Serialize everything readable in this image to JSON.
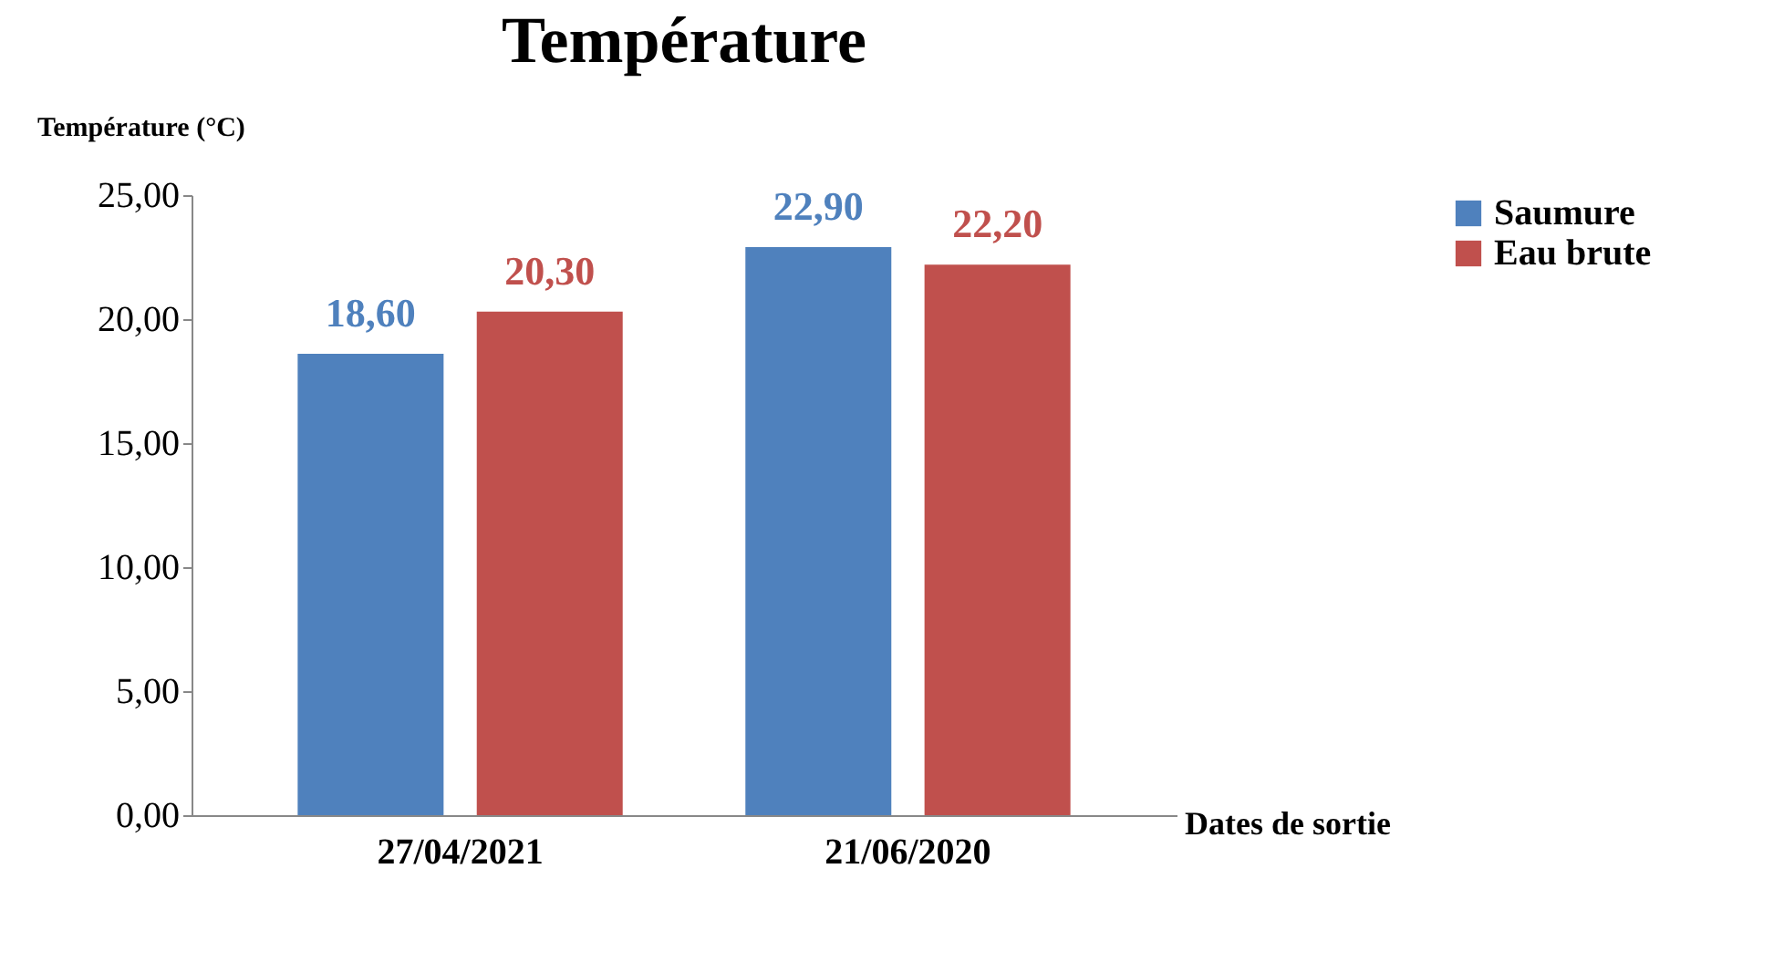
{
  "chart_data": {
    "type": "bar",
    "title": "Température",
    "ylabel": "Température (°C)",
    "xlabel": "Dates de sortie",
    "categories": [
      "27/04/2021",
      "21/06/2020"
    ],
    "series": [
      {
        "name": "Saumure",
        "color": "#4f81bd",
        "values": [
          18.6,
          22.9
        ],
        "value_labels": [
          "18,60",
          "22,90"
        ]
      },
      {
        "name": "Eau brute",
        "color": "#c0504d",
        "values": [
          20.3,
          22.2
        ],
        "value_labels": [
          "20,30",
          "22,20"
        ]
      }
    ],
    "ylim": [
      0,
      25
    ],
    "yticks": [
      {
        "value": 0,
        "label": "0,00"
      },
      {
        "value": 5,
        "label": "5,00"
      },
      {
        "value": 10,
        "label": "10,00"
      },
      {
        "value": 15,
        "label": "15,00"
      },
      {
        "value": 20,
        "label": "20,00"
      },
      {
        "value": 25,
        "label": "25,00"
      }
    ],
    "grid": false,
    "legend": "right"
  }
}
